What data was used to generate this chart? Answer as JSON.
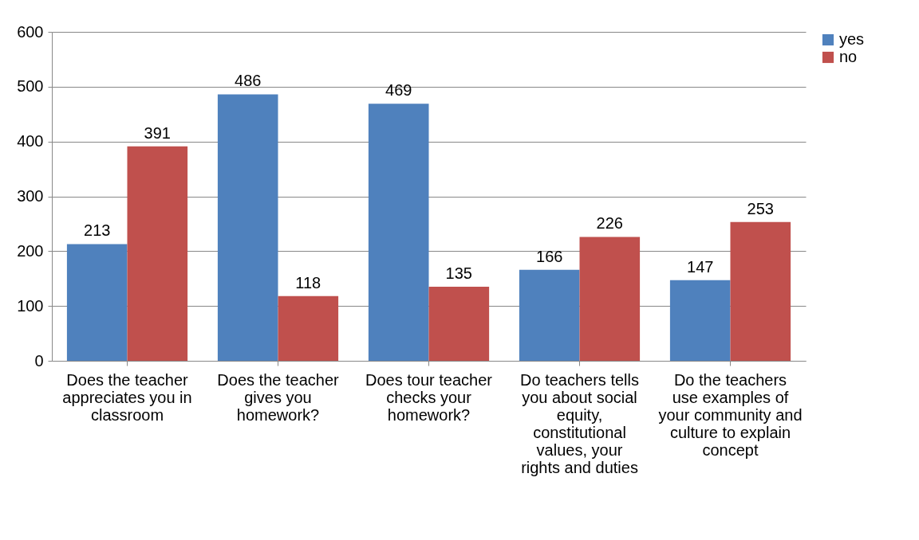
{
  "chart_data": {
    "type": "bar",
    "categories": [
      "Does the teacher appreciates you in classroom",
      "Does the teacher gives you homework?",
      "Does tour teacher checks your homework?",
      "Do teachers  tells you about social equity, constitutional values, your rights and duties",
      "Do the teachers use examples of your community and culture to explain concept"
    ],
    "series": [
      {
        "name": "yes",
        "color": "#4f81bd",
        "values": [
          213,
          486,
          469,
          166,
          147
        ]
      },
      {
        "name": "no",
        "color": "#c0504d",
        "values": [
          391,
          118,
          135,
          226,
          253
        ]
      }
    ],
    "ylim": [
      0,
      600
    ],
    "yticks": [
      0,
      100,
      200,
      300,
      400,
      500,
      600
    ],
    "grid": "y",
    "legend": "right",
    "data_labels": true
  }
}
